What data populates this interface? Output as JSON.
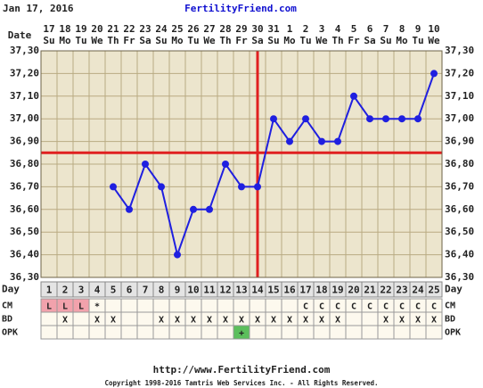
{
  "chart_data": {
    "type": "line",
    "date_text": "Jan 17, 2016",
    "site": "FertilityFriend.com",
    "x_label": "Date",
    "day_label": "Day",
    "categories": [
      17,
      18,
      19,
      20,
      21,
      22,
      23,
      24,
      25,
      26,
      27,
      28,
      29,
      30,
      31,
      1,
      2,
      3,
      4,
      5,
      6,
      7,
      8,
      9,
      10
    ],
    "weekdays": [
      "Su",
      "Mo",
      "Tu",
      "We",
      "Th",
      "Fr",
      "Sa",
      "Su",
      "Mo",
      "Tu",
      "We",
      "Th",
      "Fr",
      "Sa",
      "Su",
      "Mo",
      "Tu",
      "We",
      "Th",
      "Fr",
      "Sa",
      "Su",
      "Mo",
      "Tu",
      "We"
    ],
    "days": [
      1,
      2,
      3,
      4,
      5,
      6,
      7,
      8,
      9,
      10,
      11,
      12,
      13,
      14,
      15,
      16,
      17,
      18,
      19,
      20,
      21,
      22,
      23,
      24,
      25
    ],
    "values": [
      null,
      null,
      null,
      null,
      36.7,
      36.6,
      36.8,
      36.7,
      36.4,
      36.6,
      36.6,
      36.8,
      36.7,
      36.7,
      37.0,
      36.9,
      37.0,
      36.9,
      36.9,
      37.1,
      37.0,
      37.0,
      37.0,
      37.0,
      37.2
    ],
    "color": "#1f1fe0",
    "ylim": [
      36.3,
      37.3
    ],
    "yticks": [
      {
        "value": 36.3,
        "label": "36,30"
      },
      {
        "value": 36.4,
        "label": "36,40"
      },
      {
        "value": 36.5,
        "label": "36,50"
      },
      {
        "value": 36.6,
        "label": "36,60"
      },
      {
        "value": 36.7,
        "label": "36,70"
      },
      {
        "value": 36.8,
        "label": "36,80"
      },
      {
        "value": 36.9,
        "label": "36,90"
      },
      {
        "value": 37.0,
        "label": "37,00"
      },
      {
        "value": 37.1,
        "label": "37,10"
      },
      {
        "value": 37.2,
        "label": "37,20"
      },
      {
        "value": 37.3,
        "label": "37,30"
      }
    ],
    "grid": true,
    "coverline": 36.85,
    "ovulation_day": 14,
    "line_color": "#e02020",
    "rows": [
      {
        "label": "CM",
        "cells": [
          "L",
          "L",
          "L",
          "*",
          null,
          null,
          null,
          null,
          null,
          null,
          null,
          null,
          null,
          null,
          null,
          null,
          "C",
          "C",
          "C",
          "C",
          "C",
          "C",
          "C",
          "C",
          "C"
        ]
      },
      {
        "label": "BD",
        "cells": [
          null,
          "X",
          null,
          "X",
          "X",
          null,
          null,
          "X",
          "X",
          "X",
          "X",
          "X",
          "X",
          "X",
          "X",
          "X",
          "X",
          "X",
          "X",
          null,
          null,
          "X",
          "X",
          "X",
          "X"
        ]
      },
      {
        "label": "OPK",
        "cells": [
          null,
          null,
          null,
          null,
          null,
          null,
          null,
          null,
          null,
          null,
          null,
          null,
          "+",
          null,
          null,
          null,
          null,
          null,
          null,
          null,
          null,
          null,
          null,
          null,
          null
        ]
      }
    ],
    "highlights": {
      "L": "#f2a2ac",
      "+": "#5cbf5c"
    },
    "footer_url": "http://www.FertilityFriend.com",
    "copyright": "Copyright 1998-2016 Tamtris Web Services Inc. - All Rights Reserved."
  }
}
